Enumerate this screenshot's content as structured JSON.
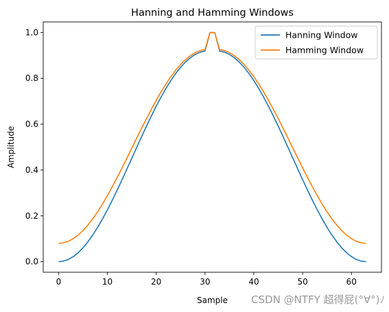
{
  "chart_data": {
    "type": "line",
    "title": "Hanning and Hamming Windows",
    "xlabel": "Sample",
    "ylabel": "Amplitude",
    "xlim": [
      -3.15,
      66.15
    ],
    "ylim": [
      -0.046,
      1.046
    ],
    "x_ticks": [
      0,
      10,
      20,
      30,
      40,
      50,
      60
    ],
    "y_ticks": [
      0.0,
      0.2,
      0.4,
      0.6,
      0.8,
      1.0
    ],
    "x_tick_labels": [
      "0",
      "10",
      "20",
      "30",
      "40",
      "50",
      "60"
    ],
    "y_tick_labels": [
      "0.0",
      "0.2",
      "0.4",
      "0.6",
      "0.8",
      "1.0"
    ],
    "grid": false,
    "legend_position": "top-right",
    "x": [
      0,
      1,
      2,
      3,
      4,
      5,
      6,
      7,
      8,
      9,
      10,
      11,
      12,
      13,
      14,
      15,
      16,
      17,
      18,
      19,
      20,
      21,
      22,
      23,
      24,
      25,
      26,
      27,
      28,
      29,
      30,
      31,
      32,
      33,
      34,
      35,
      36,
      37,
      38,
      39,
      40,
      41,
      42,
      43,
      44,
      45,
      46,
      47,
      48,
      49,
      50,
      51,
      52,
      53,
      54,
      55,
      56,
      57,
      58,
      59,
      60,
      61,
      62,
      63
    ],
    "series": [
      {
        "name": "Hanning Window",
        "color": "#1f77b4",
        "values": [
          0.0,
          0.0025,
          0.0099,
          0.0222,
          0.0392,
          0.0607,
          0.0865,
          0.1163,
          0.1497,
          0.1865,
          0.2261,
          0.2682,
          0.3122,
          0.3578,
          0.4044,
          0.4515,
          0.4987,
          0.5455,
          0.5913,
          0.6357,
          0.6783,
          0.7185,
          0.756,
          0.7903,
          0.8212,
          0.8483,
          0.8713,
          0.8901,
          0.9044,
          0.9141,
          0.9189,
          0.9994,
          0.9994,
          0.9189,
          0.9141,
          0.9044,
          0.8901,
          0.8713,
          0.8483,
          0.8212,
          0.7903,
          0.756,
          0.7185,
          0.6783,
          0.6357,
          0.5913,
          0.5455,
          0.4987,
          0.4515,
          0.4044,
          0.3578,
          0.3122,
          0.2682,
          0.2261,
          0.1865,
          0.1497,
          0.1163,
          0.0865,
          0.0607,
          0.0392,
          0.0222,
          0.0099,
          0.0025,
          0.0
        ]
      },
      {
        "name": "Hamming Window",
        "color": "#ff7f0e",
        "values": [
          0.08,
          0.0823,
          0.0891,
          0.1004,
          0.1161,
          0.1359,
          0.1596,
          0.187,
          0.2178,
          0.2516,
          0.2881,
          0.3268,
          0.3673,
          0.4092,
          0.4521,
          0.4954,
          0.5388,
          0.5818,
          0.624,
          0.6649,
          0.704,
          0.741,
          0.7755,
          0.8071,
          0.8355,
          0.8605,
          0.8816,
          0.8989,
          0.9121,
          0.921,
          0.9254,
          0.9995,
          0.9995,
          0.9254,
          0.921,
          0.9121,
          0.8989,
          0.8816,
          0.8605,
          0.8355,
          0.8071,
          0.7755,
          0.741,
          0.704,
          0.6649,
          0.624,
          0.5818,
          0.5388,
          0.4954,
          0.4521,
          0.4092,
          0.3673,
          0.3268,
          0.2881,
          0.2516,
          0.2178,
          0.187,
          0.1596,
          0.1359,
          0.1161,
          0.1004,
          0.0891,
          0.0823,
          0.08
        ]
      }
    ]
  },
  "watermark": "CSDN @NTFY 超得屁(°∀°)ﾉ"
}
